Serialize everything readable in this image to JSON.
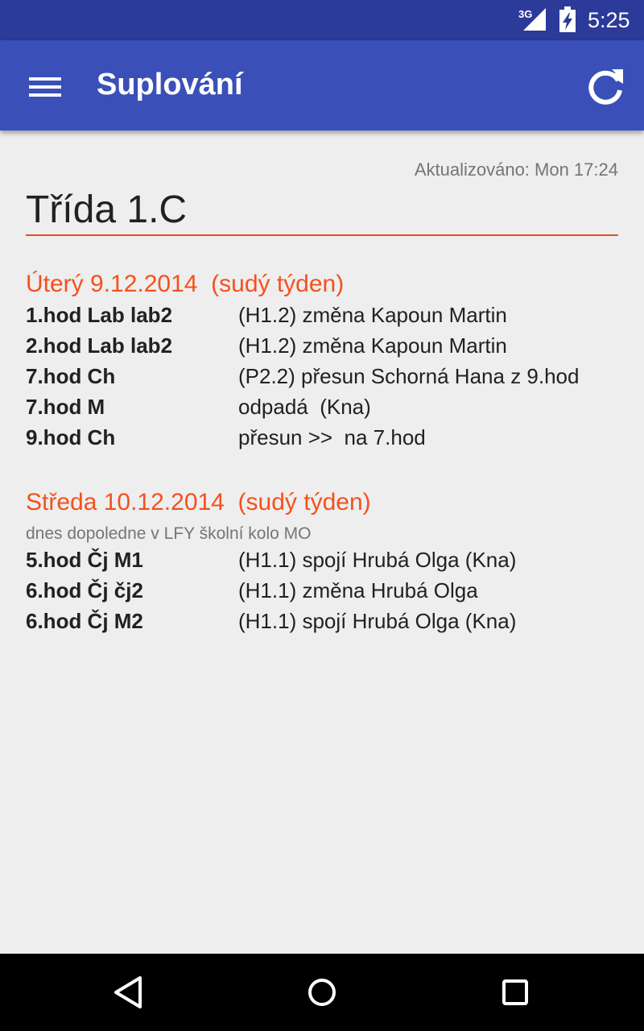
{
  "status_bar": {
    "network": "3G",
    "time": "5:25"
  },
  "app_bar": {
    "title": "Suplování",
    "menu_icon": "hamburger-menu-icon",
    "refresh_icon": "refresh-icon"
  },
  "updated": "Aktualizováno: Mon 17:24",
  "class_title": "Třída 1.C",
  "days": [
    {
      "heading": "Úterý 9.12.2014  (sudý týden)",
      "note": "",
      "rows": [
        {
          "lesson": "1.hod Lab lab2",
          "change": "(H1.2) změna Kapoun Martin"
        },
        {
          "lesson": "2.hod Lab lab2",
          "change": "(H1.2) změna Kapoun Martin"
        },
        {
          "lesson": "7.hod Ch",
          "change": "(P2.2) přesun Schorná Hana z 9.hod"
        },
        {
          "lesson": "7.hod M",
          "change": "odpadá  (Kna)"
        },
        {
          "lesson": "9.hod Ch",
          "change": "přesun >>  na 7.hod"
        }
      ]
    },
    {
      "heading": "Středa 10.12.2014  (sudý týden)",
      "note": "dnes dopoledne v LFY školní kolo MO",
      "rows": [
        {
          "lesson": "5.hod Čj M1",
          "change": "(H1.1) spojí Hrubá Olga (Kna)"
        },
        {
          "lesson": "6.hod Čj čj2",
          "change": "(H1.1) změna Hrubá Olga"
        },
        {
          "lesson": "6.hod Čj M2",
          "change": "(H1.1) spojí Hrubá Olga (Kna)"
        }
      ]
    }
  ],
  "nav_bar": {
    "back_icon": "back-icon",
    "home_icon": "home-icon",
    "recents_icon": "recents-icon"
  },
  "colors": {
    "status_bar": "#2c3a99",
    "app_bar": "#3a50b8",
    "accent": "#f4511e",
    "background": "#eeeeee"
  }
}
